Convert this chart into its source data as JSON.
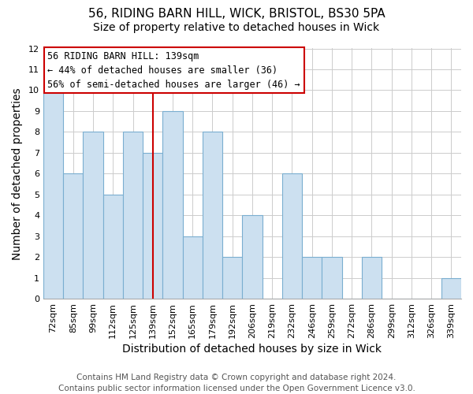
{
  "title": "56, RIDING BARN HILL, WICK, BRISTOL, BS30 5PA",
  "subtitle": "Size of property relative to detached houses in Wick",
  "xlabel": "Distribution of detached houses by size in Wick",
  "ylabel": "Number of detached properties",
  "bar_labels": [
    "72sqm",
    "85sqm",
    "99sqm",
    "112sqm",
    "125sqm",
    "139sqm",
    "152sqm",
    "165sqm",
    "179sqm",
    "192sqm",
    "206sqm",
    "219sqm",
    "232sqm",
    "246sqm",
    "259sqm",
    "272sqm",
    "286sqm",
    "299sqm",
    "312sqm",
    "326sqm",
    "339sqm"
  ],
  "bar_values": [
    10,
    6,
    8,
    5,
    8,
    7,
    9,
    3,
    8,
    2,
    4,
    0,
    6,
    2,
    2,
    0,
    2,
    0,
    0,
    0,
    1
  ],
  "bar_fill_color": "#cce0f0",
  "bar_edge_color": "#7aaed0",
  "reference_line_index": 5,
  "ylim": [
    0,
    12
  ],
  "yticks": [
    0,
    1,
    2,
    3,
    4,
    5,
    6,
    7,
    8,
    9,
    10,
    11,
    12
  ],
  "annotation_title": "56 RIDING BARN HILL: 139sqm",
  "annotation_line1": "← 44% of detached houses are smaller (36)",
  "annotation_line2": "56% of semi-detached houses are larger (46) →",
  "annotation_box_facecolor": "#ffffff",
  "annotation_box_edgecolor": "#cc0000",
  "footer1": "Contains HM Land Registry data © Crown copyright and database right 2024.",
  "footer2": "Contains public sector information licensed under the Open Government Licence v3.0.",
  "grid_color": "#cccccc",
  "title_fontsize": 11,
  "subtitle_fontsize": 10,
  "axis_label_fontsize": 10,
  "tick_fontsize": 8,
  "footer_fontsize": 7.5,
  "annotation_fontsize": 8.5
}
